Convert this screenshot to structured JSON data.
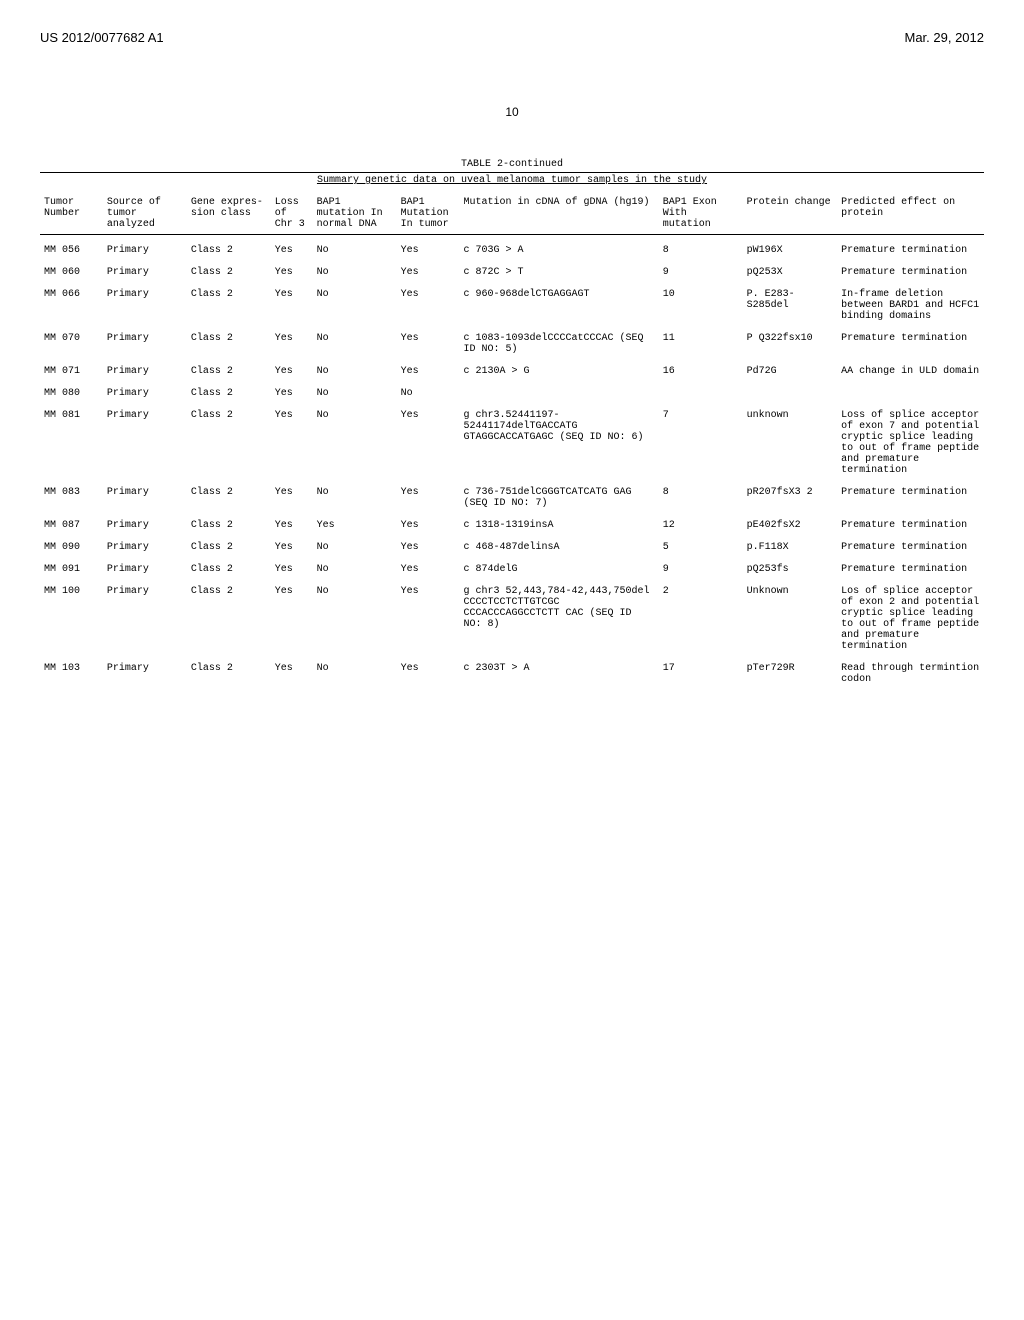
{
  "header": {
    "pubnum": "US 2012/0077682 A1",
    "date": "Mar. 29, 2012",
    "page": "10"
  },
  "table": {
    "title": "TABLE 2-continued",
    "subtitle": "Summary genetic data on uveal melanoma tumor samples in the study",
    "columns": [
      "Tumor Number",
      "Source of tumor analyzed",
      "Gene expres- sion class",
      "Loss of Chr 3",
      "BAP1 mutation In normal DNA",
      "BAP1 Mutation In tumor",
      "Mutation in cDNA of gDNA (hg19)",
      "BAP1 Exon With mutation",
      "Protein change",
      "Predicted effect on protein"
    ],
    "rows": [
      [
        "MM 056",
        "Primary",
        "Class 2",
        "Yes",
        "No",
        "Yes",
        "c 703G > A",
        "8",
        "pW196X",
        "Premature termination"
      ],
      [
        "MM 060",
        "Primary",
        "Class 2",
        "Yes",
        "No",
        "Yes",
        "c 872C > T",
        "9",
        "pQ253X",
        "Premature termination"
      ],
      [
        "MM 066",
        "Primary",
        "Class 2",
        "Yes",
        "No",
        "Yes",
        "c 960-968delCTGAGGAGT",
        "10",
        "P. E283-S285del",
        "In-frame deletion between BARD1 and HCFC1 binding domains"
      ],
      [
        "MM 070",
        "Primary",
        "Class 2",
        "Yes",
        "No",
        "Yes",
        "c 1083-1093delCCCCatCCCAC (SEQ ID NO: 5)",
        "11",
        "P Q322fsx10",
        "Premature termination"
      ],
      [
        "MM 071",
        "Primary",
        "Class 2",
        "Yes",
        "No",
        "Yes",
        "c 2130A > G",
        "16",
        "Pd72G",
        "AA change in ULD domain"
      ],
      [
        "MM 080",
        "Primary",
        "Class 2",
        "Yes",
        "No",
        "No",
        "",
        "",
        "",
        ""
      ],
      [
        "MM 081",
        "Primary",
        "Class 2",
        "Yes",
        "No",
        "Yes",
        "g chr3.52441197-52441174delTGACCATG GTAGGCACCATGAGC (SEQ ID NO: 6)",
        "7",
        "unknown",
        "Loss of splice acceptor of exon 7 and potential cryptic splice leading to out of frame peptide and premature termination"
      ],
      [
        "MM 083",
        "Primary",
        "Class 2",
        "Yes",
        "No",
        "Yes",
        "c 736-751delCGGGTCATCATG GAG (SEQ ID NO: 7)",
        "8",
        "pR207fsX3 2",
        "Premature termination"
      ],
      [
        "MM 087",
        "Primary",
        "Class 2",
        "Yes",
        "Yes",
        "Yes",
        "c 1318-1319insA",
        "12",
        "pE402fsX2",
        "Premature termination"
      ],
      [
        "MM 090",
        "Primary",
        "Class 2",
        "Yes",
        "No",
        "Yes",
        "c 468-487delinsA",
        "5",
        "p.F118X",
        "Premature termination"
      ],
      [
        "MM 091",
        "Primary",
        "Class 2",
        "Yes",
        "No",
        "Yes",
        "c 874delG",
        "9",
        "pQ253fs",
        "Premature termination"
      ],
      [
        "MM 100",
        "Primary",
        "Class 2",
        "Yes",
        "No",
        "Yes",
        "g chr3 52,443,784-42,443,750del CCCCTCCTCTTGTCGC CCCACCCAGGCCTCTT CAC (SEQ ID NO: 8)",
        "2",
        "Unknown",
        "Los of splice acceptor of exon 2 and potential cryptic splice leading to out of frame peptide and premature termination"
      ],
      [
        "MM 103",
        "Primary",
        "Class 2",
        "Yes",
        "No",
        "Yes",
        "c 2303T > A",
        "17",
        "pTer729R",
        "Read through termintion codon"
      ]
    ]
  }
}
